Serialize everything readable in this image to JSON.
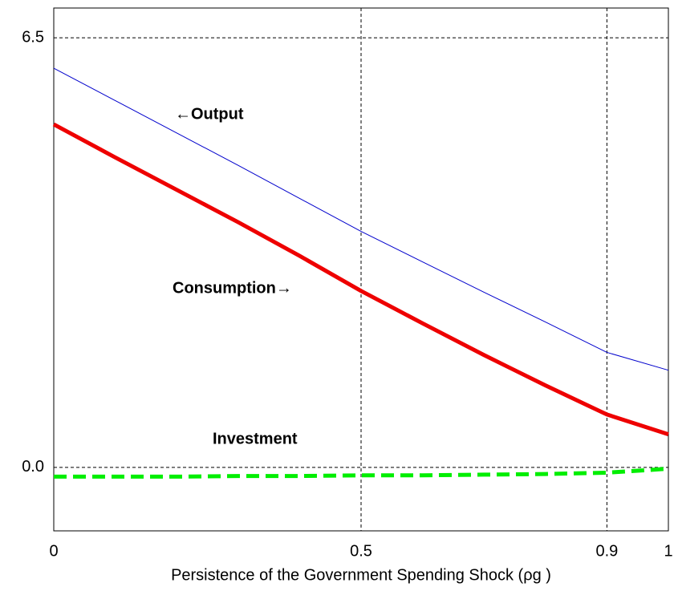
{
  "chart_data": {
    "type": "line",
    "xlabel": "Persistence of the Government Spending Shock (ρg )",
    "x": [
      0,
      0.1,
      0.2,
      0.3,
      0.4,
      0.5,
      0.6,
      0.7,
      0.8,
      0.9,
      1
    ],
    "series": [
      {
        "name": "←Output",
        "color": "#0000cc",
        "linewidth": 1,
        "linestyle": "solid",
        "values": [
          6.04,
          5.55,
          5.06,
          4.57,
          4.07,
          3.57,
          3.11,
          2.65,
          2.2,
          1.74,
          1.47
        ]
      },
      {
        "name": "Consumption→",
        "color": "#ee0000",
        "linewidth": 5,
        "linestyle": "solid",
        "values": [
          5.19,
          4.69,
          4.2,
          3.71,
          3.2,
          2.67,
          2.18,
          1.7,
          1.24,
          0.8,
          0.5
        ]
      },
      {
        "name": "Investment",
        "color": "#00ee00",
        "linewidth": 5,
        "linestyle": "dashed",
        "values": [
          -0.14,
          -0.14,
          -0.14,
          -0.13,
          -0.13,
          -0.12,
          -0.12,
          -0.11,
          -0.1,
          -0.08,
          -0.02
        ]
      }
    ],
    "xlim": [
      0,
      1
    ],
    "xticks": [
      0,
      0.5,
      0.9,
      1
    ],
    "ylim": [
      -0.96,
      6.95
    ],
    "yticks": [
      {
        "value": 0,
        "label": "0.0"
      },
      6.5
    ],
    "grid": true
  }
}
